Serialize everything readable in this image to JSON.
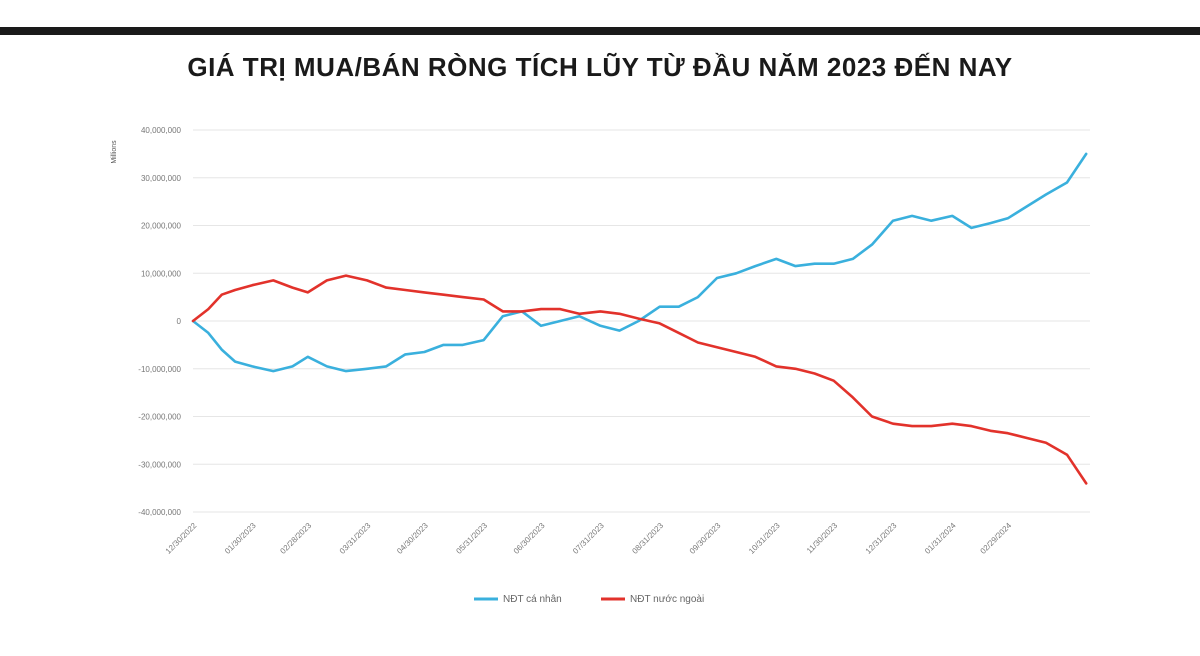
{
  "title": "GIÁ TRỊ MUA/BÁN RÒNG TÍCH LŨY TỪ ĐẦU NĂM 2023 ĐẾN NAY",
  "chart_data": {
    "type": "line",
    "title": "GIÁ TRỊ MUA/BÁN RÒNG TÍCH LŨY TỪ ĐẦU NĂM 2023 ĐẾN NAY",
    "ylabel": "Millions",
    "ylim": [
      -40000000,
      40000000
    ],
    "yticks": [
      40000000,
      30000000,
      20000000,
      10000000,
      0,
      -10000000,
      -20000000,
      -30000000,
      -40000000
    ],
    "ytick_labels": [
      "40,000,000",
      "30,000,000",
      "20,000,000",
      "10,000,000",
      "0",
      "-10,000,000",
      "-20,000,000",
      "-30,000,000",
      "-40,000,000"
    ],
    "xlim": [
      "2022-12-30",
      "2024-04-12"
    ],
    "xticks": [
      "2022-12-30",
      "2023-01-30",
      "2023-02-28",
      "2023-03-31",
      "2023-04-30",
      "2023-05-31",
      "2023-06-30",
      "2023-07-31",
      "2023-08-31",
      "2023-09-30",
      "2023-10-31",
      "2023-11-30",
      "2023-12-31",
      "2024-01-31",
      "2024-02-29"
    ],
    "xtick_labels": [
      "12/30/2022",
      "01/30/2023",
      "02/28/2023",
      "03/31/2023",
      "04/30/2023",
      "05/31/2023",
      "06/30/2023",
      "07/31/2023",
      "08/31/2023",
      "09/30/2023",
      "10/31/2023",
      "11/30/2023",
      "12/31/2023",
      "01/31/2024",
      "02/29/2024"
    ],
    "grid": true,
    "legend_position": "bottom",
    "series": [
      {
        "name": "NĐT cá nhân",
        "color": "#3ab0dd",
        "x": [
          "2022-12-30",
          "2023-01-07",
          "2023-01-14",
          "2023-01-21",
          "2023-01-30",
          "2023-02-10",
          "2023-02-20",
          "2023-02-28",
          "2023-03-10",
          "2023-03-20",
          "2023-03-31",
          "2023-04-10",
          "2023-04-20",
          "2023-04-30",
          "2023-05-10",
          "2023-05-20",
          "2023-05-31",
          "2023-06-10",
          "2023-06-20",
          "2023-06-30",
          "2023-07-10",
          "2023-07-20",
          "2023-07-31",
          "2023-08-10",
          "2023-08-20",
          "2023-08-31",
          "2023-09-10",
          "2023-09-20",
          "2023-09-30",
          "2023-10-10",
          "2023-10-20",
          "2023-10-31",
          "2023-11-10",
          "2023-11-20",
          "2023-11-30",
          "2023-12-10",
          "2023-12-20",
          "2023-12-31",
          "2024-01-10",
          "2024-01-20",
          "2024-01-31",
          "2024-02-10",
          "2024-02-20",
          "2024-02-29",
          "2024-03-10",
          "2024-03-20",
          "2024-03-31",
          "2024-04-10"
        ],
        "values": [
          0,
          -2500000,
          -6000000,
          -8500000,
          -9500000,
          -10500000,
          -9500000,
          -7500000,
          -9500000,
          -10500000,
          -10000000,
          -9500000,
          -7000000,
          -6500000,
          -5000000,
          -5000000,
          -4000000,
          1000000,
          2000000,
          -1000000,
          0,
          1000000,
          -1000000,
          -2000000,
          0,
          3000000,
          3000000,
          5000000,
          9000000,
          10000000,
          11500000,
          13000000,
          11500000,
          12000000,
          12000000,
          13000000,
          16000000,
          21000000,
          22000000,
          21000000,
          22000000,
          19500000,
          20500000,
          21500000,
          24000000,
          26500000,
          29000000,
          35000000
        ]
      },
      {
        "name": "NĐT nước ngoài",
        "color": "#e2322b",
        "x": [
          "2022-12-30",
          "2023-01-07",
          "2023-01-14",
          "2023-01-21",
          "2023-01-30",
          "2023-02-10",
          "2023-02-20",
          "2023-02-28",
          "2023-03-10",
          "2023-03-20",
          "2023-03-31",
          "2023-04-10",
          "2023-04-20",
          "2023-04-30",
          "2023-05-10",
          "2023-05-20",
          "2023-05-31",
          "2023-06-10",
          "2023-06-20",
          "2023-06-30",
          "2023-07-10",
          "2023-07-20",
          "2023-07-31",
          "2023-08-10",
          "2023-08-20",
          "2023-08-31",
          "2023-09-10",
          "2023-09-20",
          "2023-09-30",
          "2023-10-10",
          "2023-10-20",
          "2023-10-31",
          "2023-11-10",
          "2023-11-20",
          "2023-11-30",
          "2023-12-10",
          "2023-12-20",
          "2023-12-31",
          "2024-01-10",
          "2024-01-20",
          "2024-01-31",
          "2024-02-10",
          "2024-02-20",
          "2024-02-29",
          "2024-03-10",
          "2024-03-20",
          "2024-03-31",
          "2024-04-10"
        ],
        "values": [
          0,
          2500000,
          5500000,
          6500000,
          7500000,
          8500000,
          7000000,
          6000000,
          8500000,
          9500000,
          8500000,
          7000000,
          6500000,
          6000000,
          5500000,
          5000000,
          4500000,
          2000000,
          2000000,
          2500000,
          2500000,
          1500000,
          2000000,
          1500000,
          500000,
          -500000,
          -2500000,
          -4500000,
          -5500000,
          -6500000,
          -7500000,
          -9500000,
          -10000000,
          -11000000,
          -12500000,
          -16000000,
          -20000000,
          -21500000,
          -22000000,
          -22000000,
          -21500000,
          -22000000,
          -23000000,
          -23500000,
          -24500000,
          -25500000,
          -28000000,
          -34000000
        ]
      }
    ]
  }
}
